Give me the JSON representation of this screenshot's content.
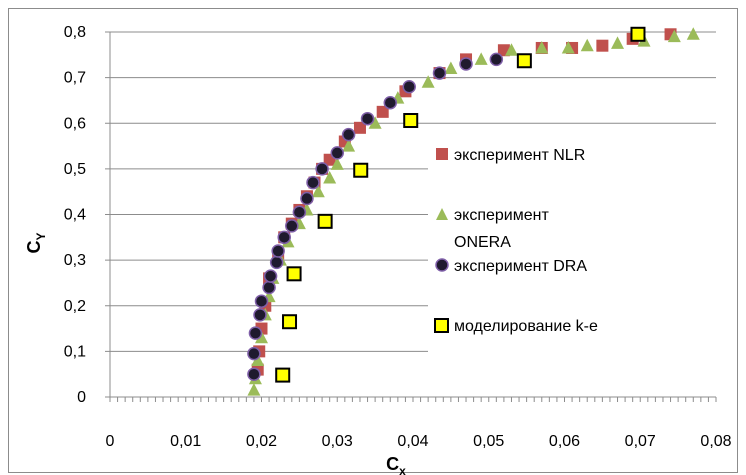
{
  "chart_data": {
    "type": "scatter",
    "xlabel": "C",
    "xlabel_sub": "x",
    "ylabel": "C",
    "ylabel_sub": "Y",
    "xlim": [
      0,
      0.08
    ],
    "ylim": [
      0,
      0.8
    ],
    "x_ticks": [
      0,
      0.01,
      0.02,
      0.03,
      0.04,
      0.05,
      0.06,
      0.07,
      0.08
    ],
    "x_tick_labels": [
      "0",
      "0,01",
      "0,02",
      "0,03",
      "0,04",
      "0,05",
      "0,06",
      "0,07",
      "0,08"
    ],
    "y_ticks": [
      0,
      0.1,
      0.2,
      0.3,
      0.4,
      0.5,
      0.6,
      0.7,
      0.8
    ],
    "y_tick_labels": [
      "0",
      "0,1",
      "0,2",
      "0,3",
      "0,4",
      "0,5",
      "0,6",
      "0,7",
      "0,8"
    ],
    "grid": "horizontal",
    "legend_position": "right",
    "series": [
      {
        "name": "эксперимент NLR",
        "marker": "square",
        "color": "#c0504d",
        "points": [
          [
            0.0195,
            0.06
          ],
          [
            0.0197,
            0.1
          ],
          [
            0.02,
            0.15
          ],
          [
            0.0205,
            0.2
          ],
          [
            0.021,
            0.26
          ],
          [
            0.0222,
            0.31
          ],
          [
            0.023,
            0.35
          ],
          [
            0.024,
            0.38
          ],
          [
            0.025,
            0.41
          ],
          [
            0.026,
            0.44
          ],
          [
            0.027,
            0.47
          ],
          [
            0.028,
            0.5
          ],
          [
            0.029,
            0.52
          ],
          [
            0.031,
            0.56
          ],
          [
            0.033,
            0.59
          ],
          [
            0.036,
            0.625
          ],
          [
            0.039,
            0.67
          ],
          [
            0.0435,
            0.71
          ],
          [
            0.047,
            0.74
          ],
          [
            0.052,
            0.76
          ],
          [
            0.057,
            0.765
          ],
          [
            0.061,
            0.765
          ],
          [
            0.065,
            0.77
          ],
          [
            0.069,
            0.785
          ],
          [
            0.074,
            0.795
          ]
        ]
      },
      {
        "name": "эксперимент ONERA",
        "name_lines": [
          "эксперимент",
          "ONERA"
        ],
        "marker": "triangle",
        "color": "#9bbb59",
        "points": [
          [
            0.019,
            0.015
          ],
          [
            0.0192,
            0.04
          ],
          [
            0.0195,
            0.08
          ],
          [
            0.02,
            0.13
          ],
          [
            0.0205,
            0.18
          ],
          [
            0.021,
            0.22
          ],
          [
            0.0215,
            0.26
          ],
          [
            0.0225,
            0.3
          ],
          [
            0.0235,
            0.34
          ],
          [
            0.025,
            0.38
          ],
          [
            0.026,
            0.41
          ],
          [
            0.0275,
            0.45
          ],
          [
            0.029,
            0.48
          ],
          [
            0.03,
            0.51
          ],
          [
            0.0315,
            0.55
          ],
          [
            0.035,
            0.6
          ],
          [
            0.038,
            0.655
          ],
          [
            0.042,
            0.69
          ],
          [
            0.045,
            0.72
          ],
          [
            0.049,
            0.74
          ],
          [
            0.053,
            0.76
          ],
          [
            0.057,
            0.765
          ],
          [
            0.0605,
            0.765
          ],
          [
            0.063,
            0.77
          ],
          [
            0.067,
            0.775
          ],
          [
            0.0705,
            0.78
          ],
          [
            0.0745,
            0.79
          ],
          [
            0.077,
            0.795
          ]
        ]
      },
      {
        "name": "эксперимент DRA",
        "marker": "circle",
        "color": "#1f1a2e",
        "stroke": "#7f5fa8",
        "points": [
          [
            0.019,
            0.05
          ],
          [
            0.019,
            0.095
          ],
          [
            0.0192,
            0.14
          ],
          [
            0.0198,
            0.18
          ],
          [
            0.02,
            0.21
          ],
          [
            0.021,
            0.24
          ],
          [
            0.0212,
            0.265
          ],
          [
            0.022,
            0.295
          ],
          [
            0.0222,
            0.32
          ],
          [
            0.023,
            0.35
          ],
          [
            0.024,
            0.375
          ],
          [
            0.025,
            0.405
          ],
          [
            0.026,
            0.435
          ],
          [
            0.0268,
            0.47
          ],
          [
            0.028,
            0.5
          ],
          [
            0.03,
            0.535
          ],
          [
            0.0315,
            0.575
          ],
          [
            0.034,
            0.61
          ],
          [
            0.037,
            0.645
          ],
          [
            0.0395,
            0.68
          ],
          [
            0.0435,
            0.71
          ],
          [
            0.047,
            0.73
          ],
          [
            0.051,
            0.74
          ]
        ]
      },
      {
        "name": "моделирование k-e",
        "marker": "square",
        "color": "#ffff00",
        "stroke": "#000000",
        "points": [
          [
            0.0228,
            0.048
          ],
          [
            0.0237,
            0.165
          ],
          [
            0.0243,
            0.27
          ],
          [
            0.0284,
            0.385
          ],
          [
            0.0331,
            0.497
          ],
          [
            0.0397,
            0.606
          ],
          [
            0.0547,
            0.737
          ],
          [
            0.0697,
            0.795
          ]
        ]
      }
    ]
  }
}
